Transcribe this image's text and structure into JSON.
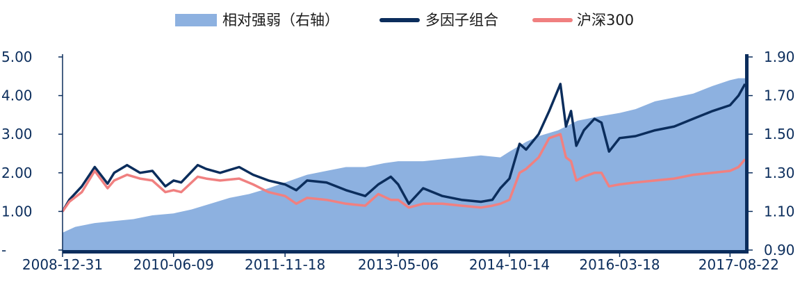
{
  "chart_data": {
    "type": "area",
    "title": "",
    "xlabel": "",
    "ylabel": "",
    "x_ticks": [
      "2008-12-31",
      "2010-06-09",
      "2011-11-18",
      "2013-05-06",
      "2014-10-14",
      "2016-03-18",
      "2017-08-22"
    ],
    "y_left": {
      "ticks": [
        "-",
        "1.00",
        "2.00",
        "3.00",
        "4.00",
        "5.00"
      ],
      "range": [
        0,
        5
      ]
    },
    "y_right": {
      "ticks": [
        "0.90",
        "1.10",
        "1.30",
        "1.50",
        "1.70",
        "1.90"
      ],
      "range": [
        0.9,
        1.9
      ]
    },
    "legend_placement": "top-center",
    "grid": false,
    "series": [
      {
        "name": "相对强弱（右轴）",
        "kind": "area",
        "axis": "right",
        "color": "#8db1e0",
        "x": [
          "2008-12-31",
          "2009-03-01",
          "2009-06-01",
          "2009-09-01",
          "2009-12-01",
          "2010-03-01",
          "2010-06-09",
          "2010-09-01",
          "2010-12-01",
          "2011-03-01",
          "2011-06-01",
          "2011-09-01",
          "2011-11-18",
          "2012-03-01",
          "2012-06-01",
          "2012-09-01",
          "2012-12-01",
          "2013-03-01",
          "2013-05-06",
          "2013-09-01",
          "2013-12-01",
          "2014-03-01",
          "2014-06-01",
          "2014-09-01",
          "2014-10-14",
          "2015-01-01",
          "2015-03-01",
          "2015-06-01",
          "2015-09-01",
          "2015-12-01",
          "2016-03-18",
          "2016-06-01",
          "2016-09-01",
          "2016-12-01",
          "2017-03-01",
          "2017-06-01",
          "2017-08-22",
          "2017-10-01",
          "2017-11-01"
        ],
        "values": [
          0.99,
          1.02,
          1.04,
          1.05,
          1.06,
          1.08,
          1.09,
          1.11,
          1.14,
          1.17,
          1.19,
          1.22,
          1.25,
          1.29,
          1.31,
          1.33,
          1.33,
          1.35,
          1.36,
          1.36,
          1.37,
          1.38,
          1.39,
          1.38,
          1.41,
          1.46,
          1.49,
          1.52,
          1.57,
          1.59,
          1.61,
          1.63,
          1.67,
          1.69,
          1.71,
          1.75,
          1.78,
          1.79,
          1.79
        ]
      },
      {
        "name": "多因子组合",
        "kind": "line",
        "axis": "left",
        "color": "#0b2d5c",
        "x": [
          "2008-12-31",
          "2009-02-01",
          "2009-04-01",
          "2009-06-01",
          "2009-08-01",
          "2009-09-01",
          "2009-11-01",
          "2010-01-01",
          "2010-03-01",
          "2010-05-01",
          "2010-06-09",
          "2010-07-15",
          "2010-10-01",
          "2010-11-10",
          "2011-01-15",
          "2011-04-15",
          "2011-06-20",
          "2011-09-01",
          "2011-11-18",
          "2012-01-10",
          "2012-03-01",
          "2012-06-01",
          "2012-09-01",
          "2012-12-01",
          "2013-02-01",
          "2013-04-01",
          "2013-05-06",
          "2013-06-25",
          "2013-09-01",
          "2013-12-01",
          "2014-03-01",
          "2014-06-01",
          "2014-07-25",
          "2014-09-01",
          "2014-10-14",
          "2014-12-01",
          "2015-01-01",
          "2015-03-01",
          "2015-04-20",
          "2015-06-12",
          "2015-07-08",
          "2015-08-01",
          "2015-08-26",
          "2015-10-01",
          "2015-11-20",
          "2015-12-23",
          "2016-01-28",
          "2016-03-18",
          "2016-06-01",
          "2016-09-01",
          "2016-12-01",
          "2017-03-01",
          "2017-06-01",
          "2017-08-22",
          "2017-10-01",
          "2017-11-01"
        ],
        "values": [
          1.0,
          1.3,
          1.65,
          2.15,
          1.72,
          2.0,
          2.2,
          2.0,
          2.05,
          1.65,
          1.8,
          1.75,
          2.2,
          2.1,
          2.0,
          2.15,
          1.95,
          1.8,
          1.7,
          1.55,
          1.8,
          1.75,
          1.55,
          1.4,
          1.7,
          1.9,
          1.7,
          1.2,
          1.6,
          1.4,
          1.3,
          1.25,
          1.3,
          1.6,
          1.85,
          2.75,
          2.6,
          3.0,
          3.6,
          4.3,
          3.2,
          3.6,
          2.7,
          3.1,
          3.4,
          3.3,
          2.55,
          2.9,
          2.95,
          3.1,
          3.2,
          3.4,
          3.6,
          3.75,
          4.0,
          4.3
        ]
      },
      {
        "name": "沪深300",
        "kind": "line",
        "axis": "left",
        "color": "#f08080",
        "x": [
          "2008-12-31",
          "2009-02-01",
          "2009-04-01",
          "2009-06-01",
          "2009-08-01",
          "2009-09-01",
          "2009-11-01",
          "2010-01-01",
          "2010-03-01",
          "2010-05-01",
          "2010-06-09",
          "2010-07-15",
          "2010-10-01",
          "2010-11-10",
          "2011-01-15",
          "2011-04-15",
          "2011-06-20",
          "2011-09-01",
          "2011-11-18",
          "2012-01-10",
          "2012-03-01",
          "2012-06-01",
          "2012-09-01",
          "2012-12-01",
          "2013-02-01",
          "2013-04-01",
          "2013-05-06",
          "2013-06-25",
          "2013-09-01",
          "2013-12-01",
          "2014-03-01",
          "2014-06-01",
          "2014-07-25",
          "2014-09-01",
          "2014-10-14",
          "2014-12-01",
          "2015-01-01",
          "2015-03-01",
          "2015-04-20",
          "2015-06-12",
          "2015-07-08",
          "2015-08-01",
          "2015-08-26",
          "2015-10-01",
          "2015-11-20",
          "2015-12-23",
          "2016-01-28",
          "2016-03-18",
          "2016-06-01",
          "2016-09-01",
          "2016-12-01",
          "2017-03-01",
          "2017-06-01",
          "2017-08-22",
          "2017-10-01",
          "2017-11-01"
        ],
        "values": [
          1.0,
          1.25,
          1.5,
          2.05,
          1.6,
          1.8,
          1.95,
          1.85,
          1.8,
          1.5,
          1.55,
          1.5,
          1.9,
          1.85,
          1.8,
          1.85,
          1.7,
          1.5,
          1.4,
          1.2,
          1.35,
          1.3,
          1.2,
          1.15,
          1.45,
          1.3,
          1.3,
          1.1,
          1.2,
          1.2,
          1.15,
          1.1,
          1.15,
          1.2,
          1.3,
          2.0,
          2.1,
          2.4,
          2.9,
          3.0,
          2.4,
          2.3,
          1.8,
          1.9,
          2.0,
          2.0,
          1.65,
          1.7,
          1.75,
          1.8,
          1.85,
          1.95,
          2.0,
          2.05,
          2.15,
          2.35
        ]
      }
    ]
  }
}
